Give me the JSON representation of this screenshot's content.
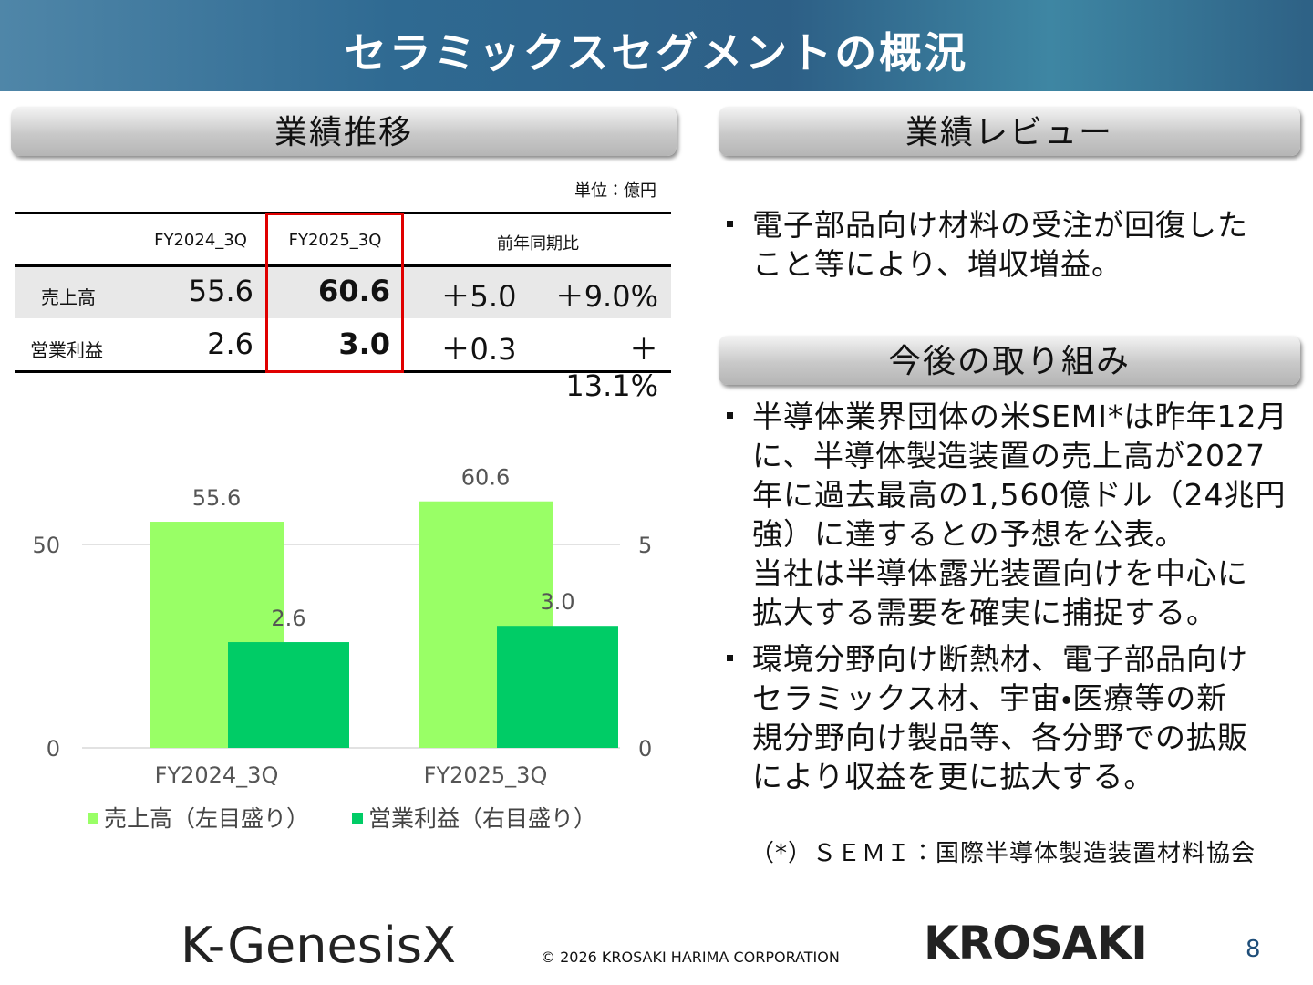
{
  "header": {
    "title": "セラミックスセグメントの概況"
  },
  "left": {
    "section_title": "業績推移",
    "unit": "単位：億円",
    "table": {
      "header": [
        "FY2024_3Q",
        "FY2025_3Q",
        "前年同期比"
      ],
      "rows": [
        {
          "label": "売上高",
          "cells": [
            "55.6",
            "60.6",
            "＋5.0",
            "＋9.0%"
          ]
        },
        {
          "label": "営業利益",
          "cells": [
            "2.6",
            "3.0",
            "＋0.3",
            "＋13.1%"
          ]
        }
      ]
    }
  },
  "chart_data": {
    "type": "bar",
    "categories": [
      "FY2024_3Q",
      "FY2025_3Q"
    ],
    "series": [
      {
        "name": "売上高（左目盛り）",
        "color": "#99ff66",
        "values": [
          55.6,
          60.6
        ],
        "value_labels": [
          "55.6",
          "60.6"
        ]
      },
      {
        "name": "営業利益（右目盛り）",
        "color": "#00cc66",
        "values": [
          2.6,
          3.0
        ],
        "value_labels": [
          "2.6",
          "3.0"
        ],
        "axis": "y2"
      }
    ],
    "ylim": [
      0,
      70
    ],
    "yticks": [
      0,
      50
    ],
    "y2lim": [
      0,
      7
    ],
    "y2ticks": [
      0,
      5
    ],
    "grid": true,
    "legend": "bottom"
  },
  "right": {
    "review_title": "業績レビュー",
    "review_bullets": [
      [
        "電子部品向け材料の受注が回復した",
        "こと等により、増収増益。"
      ]
    ],
    "future_title": "今後の取り組み",
    "future_bullets": [
      [
        "半導体業界団体の米SEMI*は昨年12月",
        "に、半導体製造装置の売上高が2027",
        "年に過去最高の1,560億ドル（24兆円",
        "強）に達するとの予想を公表。",
        "当社は半導体露光装置向けを中心に",
        "拡大する需要を確実に捕捉する。"
      ],
      [
        "環境分野向け断熱材、電子部品向け",
        "セラミックス材、宇宙・医療等の新",
        "規分野向け製品等、各分野での拡販",
        "により収益を更に拡大する。"
      ]
    ],
    "footnote": "（*）ＳＥＭＩ：国際半導体製造装置材料協会"
  },
  "footer": {
    "logo_left": "K-GenesisX",
    "copyright": "© 2026  KROSAKI HARIMA CORPORATION",
    "logo_right": "KROSAKI",
    "page": "8"
  }
}
